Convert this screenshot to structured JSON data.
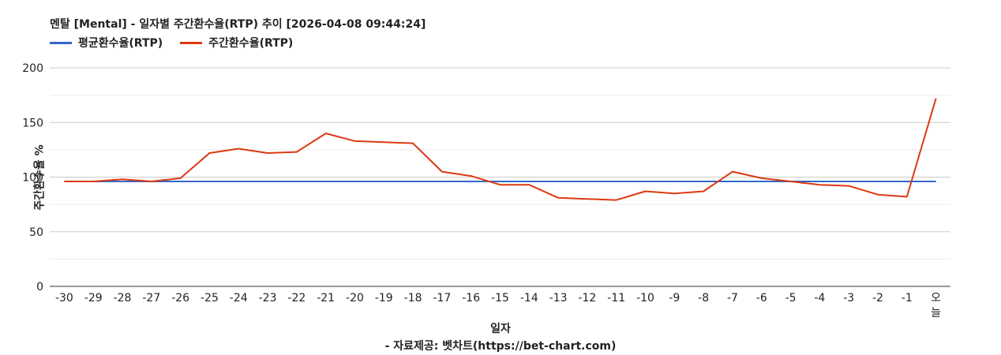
{
  "colors": {
    "avg": "#3366cc",
    "weekly": "#dc3912",
    "grid": "#cccccc",
    "minorgrid": "#ebebeb"
  },
  "chart_data": {
    "type": "line",
    "title": "멘탈 [Mental] - 일자별 주간환수율(RTP) 추이 [2026-04-08 09:44:24]",
    "xlabel": "일자",
    "ylabel": "주간환수율 %",
    "footer": "- 자료제공: 벳차트(https://bet-chart.com)",
    "ylim": [
      0,
      200
    ],
    "yticks": [
      "0",
      "50",
      "100",
      "150",
      "200"
    ],
    "legend_position": "top",
    "categories": [
      "-30",
      "-29",
      "-28",
      "-27",
      "-26",
      "-25",
      "-24",
      "-23",
      "-22",
      "-21",
      "-20",
      "-19",
      "-18",
      "-17",
      "-16",
      "-15",
      "-14",
      "-13",
      "-12",
      "-11",
      "-10",
      "-9",
      "-8",
      "-7",
      "-6",
      "-5",
      "-4",
      "-3",
      "-2",
      "-1",
      "오늘"
    ],
    "series": [
      {
        "name": "평균환수율(RTP)",
        "values": [
          96,
          96,
          96,
          96,
          96,
          96,
          96,
          96,
          96,
          96,
          96,
          96,
          96,
          96,
          96,
          96,
          96,
          96,
          96,
          96,
          96,
          96,
          96,
          96,
          96,
          96,
          96,
          96,
          96,
          96,
          96
        ]
      },
      {
        "name": "주간환수율(RTP)",
        "values": [
          96,
          96,
          98,
          96,
          99,
          122,
          126,
          122,
          123,
          140,
          133,
          132,
          131,
          105,
          101,
          93,
          93,
          81,
          80,
          79,
          87,
          85,
          87,
          105,
          99,
          96,
          93,
          92,
          84,
          82,
          172
        ]
      }
    ]
  }
}
